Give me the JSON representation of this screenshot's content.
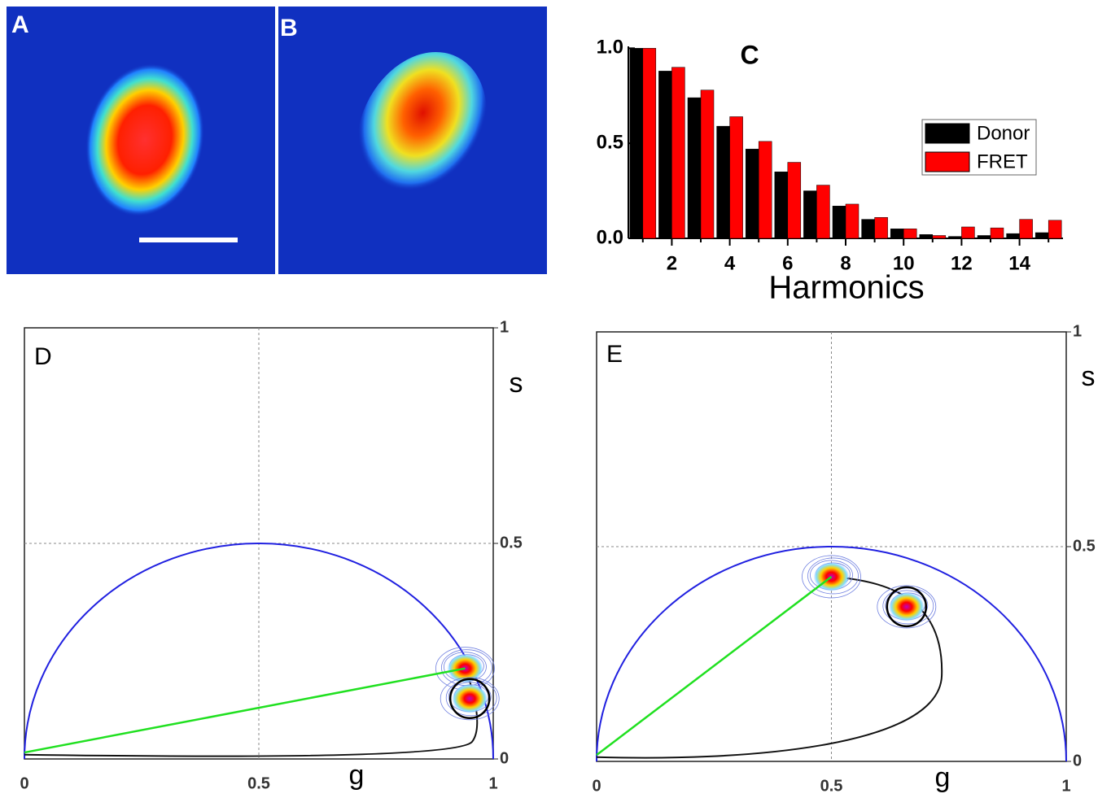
{
  "images": [
    {
      "label": "A"
    },
    {
      "label": "B"
    }
  ],
  "chart_data": [
    {
      "type": "bar",
      "title": "C",
      "x_label": "Harmonics",
      "categories": [
        null,
        "2",
        null,
        "4",
        null,
        "6",
        null,
        "8",
        null,
        "10",
        null,
        "12",
        null,
        "14",
        null
      ],
      "series": [
        {
          "name": "Donor",
          "color": "#000000",
          "values": [
            1.0,
            0.88,
            0.74,
            0.59,
            0.47,
            0.35,
            0.25,
            0.17,
            0.1,
            0.05,
            0.02,
            0.01,
            0.015,
            0.025,
            0.03
          ]
        },
        {
          "name": "FRET",
          "color": "#ff0000",
          "values": [
            1.0,
            0.9,
            0.78,
            0.64,
            0.51,
            0.4,
            0.28,
            0.18,
            0.11,
            0.05,
            0.015,
            0.06,
            0.055,
            0.1,
            0.095
          ]
        }
      ],
      "ylim": [
        0,
        1.01
      ],
      "yticks": [
        {
          "value": 0,
          "label": "0.0"
        },
        0.5,
        {
          "value": 1,
          "label": "1.0"
        }
      ],
      "legend": "upper right"
    },
    {
      "type": "phasor",
      "title": "D",
      "x_label": "g",
      "y_label": "s",
      "x": [
        0.94,
        0.95
      ],
      "values": [
        0.21,
        0.14
      ],
      "xlim": [
        0,
        1
      ],
      "ylim": [
        0,
        1
      ],
      "xticks": [
        0,
        0.5,
        1
      ],
      "yticks": [
        0,
        0.5,
        1
      ],
      "grid": true
    },
    {
      "type": "phasor",
      "title": "E",
      "x_label": "g",
      "y_label": "s",
      "x": [
        0.5,
        0.66
      ],
      "values": [
        0.43,
        0.36
      ],
      "xlim": [
        0,
        1
      ],
      "ylim": [
        0,
        1
      ],
      "xticks": [
        0,
        0.5,
        1
      ],
      "yticks": [
        0,
        0.5,
        1
      ],
      "grid": true
    }
  ]
}
